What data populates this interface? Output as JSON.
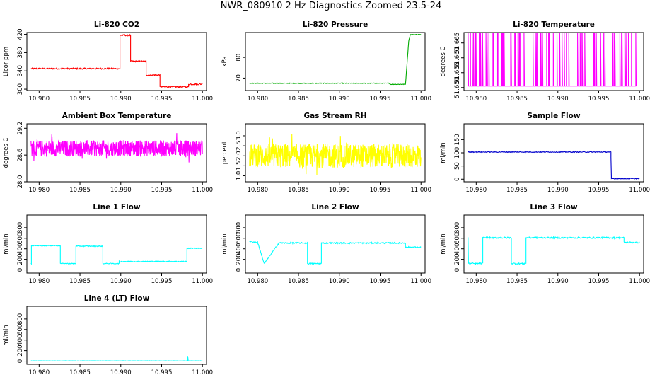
{
  "title": "NWR_080910  2 Hz Diagnostics Zoomed 23.5-24",
  "chart_data": [
    {
      "type": "line",
      "title": "Li-820 CO2",
      "ylabel": "Licor ppm",
      "xlim": [
        10.9785,
        11.0005
      ],
      "xticks": [
        "10.980",
        "10.985",
        "10.990",
        "10.995",
        "11.000"
      ],
      "ylim": [
        297,
        424
      ],
      "yticks": [
        "300",
        "340",
        "380",
        "420"
      ],
      "color": "#ff0000",
      "pattern": "steps",
      "noise": 1.5,
      "x": [
        10.979,
        10.9899,
        10.9899,
        10.9912,
        10.9912,
        10.9931,
        10.9931,
        10.9948,
        10.9948,
        10.9983,
        10.9983,
        11.0
      ],
      "y": [
        345,
        345,
        418,
        418,
        361,
        361,
        331,
        331,
        305,
        305,
        311,
        311
      ]
    },
    {
      "type": "line",
      "title": "Li-820 Pressure",
      "ylabel": "kPa",
      "xlim": [
        10.9785,
        11.0005
      ],
      "xticks": [
        "10.980",
        "10.985",
        "10.990",
        "10.995",
        "11.000"
      ],
      "ylim": [
        64,
        92
      ],
      "yticks": [
        "70",
        "80"
      ],
      "color": "#00aa00",
      "pattern": "steps",
      "noise": 0.15,
      "x": [
        10.979,
        10.9962,
        10.9962,
        10.9981,
        10.9985,
        10.9987,
        11.0
      ],
      "y": [
        67.5,
        67.5,
        67.0,
        67.0,
        88,
        91,
        91
      ]
    },
    {
      "type": "line",
      "title": "Li-820 Temperature",
      "ylabel": "degrees C",
      "xlim": [
        10.9785,
        11.0005
      ],
      "xticks": [
        "10.980",
        "10.985",
        "10.990",
        "10.995",
        "11.000"
      ],
      "ylim": [
        51.649,
        51.6685
      ],
      "yticks": [
        "51.650",
        "51.655",
        "51.660",
        "51.665"
      ],
      "color": "#ff00ff",
      "pattern": "spikes",
      "base": 51.6505,
      "top": 51.6685,
      "count": 75
    },
    {
      "type": "line",
      "title": "Ambient Box Temperature",
      "ylabel": "degrees C",
      "xlim": [
        10.9785,
        11.0005
      ],
      "xticks": [
        "10.980",
        "10.985",
        "10.990",
        "10.995",
        "11.000"
      ],
      "ylim": [
        28.0,
        29.3
      ],
      "yticks": [
        "28.0",
        "28.6",
        "29.2"
      ],
      "color": "#ff00ff",
      "pattern": "noise",
      "mean": 28.75,
      "amp": 0.18,
      "count": 700
    },
    {
      "type": "line",
      "title": "Gas Stream RH",
      "ylabel": "percent",
      "xlim": [
        10.9785,
        11.0005
      ],
      "xticks": [
        "10.980",
        "10.985",
        "10.990",
        "10.995",
        "11.000"
      ],
      "ylim": [
        0.7,
        3.6
      ],
      "yticks": [
        "1.0",
        "1.5",
        "2.0",
        "2.5",
        "3.0"
      ],
      "color": "#ffff00",
      "pattern": "noise",
      "mean": 2.0,
      "amp": 0.6,
      "count": 700
    },
    {
      "type": "line",
      "title": "Sample Flow",
      "ylabel": "ml/min",
      "xlim": [
        10.9785,
        11.0005
      ],
      "xticks": [
        "10.980",
        "10.985",
        "10.990",
        "10.995",
        "11.000"
      ],
      "ylim": [
        -10,
        210
      ],
      "yticks": [
        "0",
        "50",
        "100",
        "150"
      ],
      "color": "#0000cc",
      "pattern": "steps",
      "noise": 1.5,
      "x": [
        10.979,
        10.9965,
        10.9965,
        10.99655,
        10.99655,
        11.0
      ],
      "y": [
        103,
        103,
        80,
        10,
        2,
        2
      ]
    },
    {
      "type": "line",
      "title": "Line 1 Flow",
      "ylabel": "ml/min",
      "xlim": [
        10.9785,
        11.0005
      ],
      "xticks": [
        "10.980",
        "10.985",
        "10.990",
        "10.995",
        "11.000"
      ],
      "ylim": [
        -60,
        1040
      ],
      "yticks": [
        "0",
        "200",
        "400",
        "600",
        "800"
      ],
      "color": "#00ffff",
      "pattern": "steps",
      "noise": 8,
      "x": [
        10.979,
        10.97905,
        10.97905,
        10.9826,
        10.9826,
        10.9845,
        10.9845,
        10.9878,
        10.9878,
        10.9898,
        10.9898,
        10.9981,
        10.9981,
        11.0
      ],
      "y": [
        120,
        120,
        460,
        460,
        120,
        120,
        450,
        450,
        120,
        120,
        160,
        160,
        410,
        410
      ]
    },
    {
      "type": "line",
      "title": "Line 2 Flow",
      "ylabel": "ml/min",
      "xlim": [
        10.9785,
        11.0005
      ],
      "xticks": [
        "10.980",
        "10.985",
        "10.990",
        "10.995",
        "11.000"
      ],
      "ylim": [
        -60,
        1040
      ],
      "yticks": [
        "0",
        "200",
        "400",
        "600",
        "800"
      ],
      "color": "#00ffff",
      "pattern": "steps",
      "noise": 12,
      "x": [
        10.979,
        10.98,
        10.98,
        10.9808,
        10.9808,
        10.9826,
        10.9826,
        10.9861,
        10.9861,
        10.9878,
        10.9878,
        10.9981,
        10.9981,
        11.0
      ],
      "y": [
        540,
        520,
        520,
        120,
        120,
        510,
        510,
        510,
        120,
        120,
        510,
        510,
        430,
        430
      ]
    },
    {
      "type": "line",
      "title": "Line 3 Flow",
      "ylabel": "ml/min",
      "xlim": [
        10.9785,
        11.0005
      ],
      "xticks": [
        "10.980",
        "10.985",
        "10.990",
        "10.995",
        "11.000"
      ],
      "ylim": [
        -60,
        1040
      ],
      "yticks": [
        "0",
        "200",
        "400",
        "600",
        "800"
      ],
      "color": "#00ffff",
      "pattern": "steps",
      "noise": 14,
      "x": [
        10.979,
        10.97905,
        10.97905,
        10.9808,
        10.9808,
        10.9843,
        10.9843,
        10.9861,
        10.9861,
        10.9981,
        10.9981,
        11.0
      ],
      "y": [
        620,
        120,
        120,
        120,
        610,
        610,
        120,
        120,
        610,
        610,
        520,
        520
      ]
    },
    {
      "type": "line",
      "title": "Line 4 (LT) Flow",
      "ylabel": "ml/min",
      "xlim": [
        10.9785,
        11.0005
      ],
      "xticks": [
        "10.980",
        "10.985",
        "10.990",
        "10.995",
        "11.000"
      ],
      "ylim": [
        -60,
        1040
      ],
      "yticks": [
        "0",
        "200",
        "400",
        "600",
        "800"
      ],
      "color": "#00ffff",
      "pattern": "steps",
      "noise": 3,
      "x": [
        10.979,
        10.9982,
        10.9982,
        10.99825,
        10.99825,
        11.0
      ],
      "y": [
        5,
        5,
        100,
        30,
        5,
        5
      ]
    }
  ]
}
